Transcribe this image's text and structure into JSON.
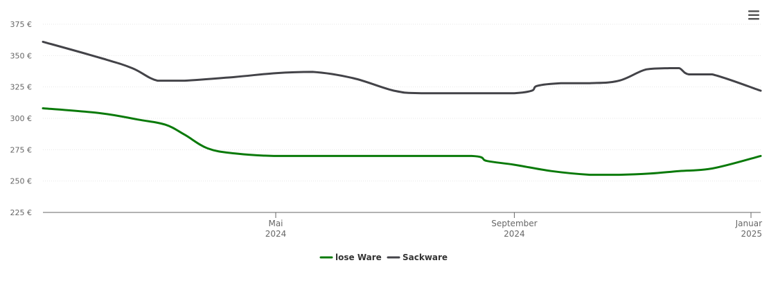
{
  "chart_data": {
    "type": "line",
    "title": "",
    "xlabel": "",
    "ylabel": "",
    "y_unit_suffix": " €",
    "ylim": [
      225,
      375
    ],
    "y_ticks": [
      225,
      250,
      275,
      300,
      325,
      350,
      375
    ],
    "y_tick_labels": [
      "225 €",
      "250 €",
      "275 €",
      "300 €",
      "325 €",
      "350 €",
      "375 €"
    ],
    "grid": true,
    "legend_placement": "bottom-center",
    "x_range": [
      "2024-01-02",
      "2025-01-06"
    ],
    "x_ticks": [
      {
        "date": "2024-05-01",
        "line1": "Mai",
        "line2": "2024"
      },
      {
        "date": "2024-09-01",
        "line1": "September",
        "line2": "2024"
      },
      {
        "date": "2025-01-01",
        "line1": "Januar",
        "line2": "2025"
      }
    ],
    "series": [
      {
        "name": "lose Ware",
        "color": "#0a7a0a",
        "points": [
          [
            "2024-01-02",
            308
          ],
          [
            "2024-02-01",
            304
          ],
          [
            "2024-02-20",
            299
          ],
          [
            "2024-03-05",
            295
          ],
          [
            "2024-03-15",
            287
          ],
          [
            "2024-03-27",
            276
          ],
          [
            "2024-04-10",
            272
          ],
          [
            "2024-04-30",
            270
          ],
          [
            "2024-06-01",
            270
          ],
          [
            "2024-07-01",
            270
          ],
          [
            "2024-08-10",
            270
          ],
          [
            "2024-08-18",
            266
          ],
          [
            "2024-09-01",
            263
          ],
          [
            "2024-09-20",
            258
          ],
          [
            "2024-10-10",
            255
          ],
          [
            "2024-10-25",
            255
          ],
          [
            "2024-11-10",
            256
          ],
          [
            "2024-11-25",
            258
          ],
          [
            "2024-12-12",
            260
          ],
          [
            "2025-01-06",
            270
          ]
        ]
      },
      {
        "name": "Sackware",
        "color": "#434348",
        "points": [
          [
            "2024-01-02",
            361
          ],
          [
            "2024-02-01",
            348
          ],
          [
            "2024-02-17",
            340
          ],
          [
            "2024-03-01",
            330
          ],
          [
            "2024-03-15",
            330
          ],
          [
            "2024-04-10",
            333
          ],
          [
            "2024-05-01",
            336
          ],
          [
            "2024-05-20",
            337
          ],
          [
            "2024-06-10",
            332
          ],
          [
            "2024-07-01",
            322
          ],
          [
            "2024-07-15",
            320
          ],
          [
            "2024-08-20",
            320
          ],
          [
            "2024-09-01",
            320
          ],
          [
            "2024-09-10",
            322
          ],
          [
            "2024-09-13",
            326
          ],
          [
            "2024-09-25",
            328
          ],
          [
            "2024-10-10",
            328
          ],
          [
            "2024-10-25",
            330
          ],
          [
            "2024-11-08",
            339
          ],
          [
            "2024-11-20",
            340
          ],
          [
            "2024-11-25",
            340
          ],
          [
            "2024-11-30",
            335
          ],
          [
            "2024-12-12",
            335
          ],
          [
            "2025-01-06",
            322
          ]
        ]
      }
    ]
  },
  "menu": {
    "icon": "hamburger-menu-icon"
  }
}
